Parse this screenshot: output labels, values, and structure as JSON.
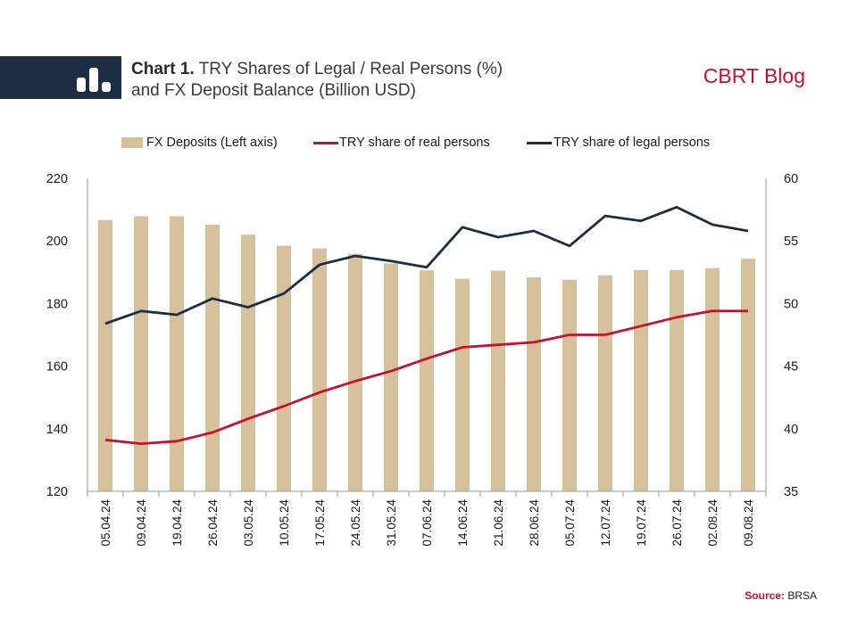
{
  "header": {
    "title_prefix": "Chart 1.",
    "title_line1": "TRY Shares of Legal / Real Persons (%)",
    "title_line2": "and FX Deposit Balance (Billion USD)",
    "brand": "CBRT Blog"
  },
  "source": {
    "label": "Source:",
    "value": "BRSA"
  },
  "colors": {
    "bar": "#d7c09c",
    "real": "#c8102e",
    "legal": "#1c2e44",
    "header_bar": "#1c2e44"
  },
  "chart_data": {
    "type": "bar",
    "categories": [
      "05.04.24",
      "09.04.24",
      "19.04.24",
      "26.04.24",
      "03.05.24",
      "10.05.24",
      "17.05.24",
      "24.05.24",
      "31.05.24",
      "07.06.24",
      "14.06.24",
      "21.06.24",
      "28.06.24",
      "05.07.24",
      "12.07.24",
      "19.07.24",
      "26.07.24",
      "02.08.24",
      "09.08.24"
    ],
    "series": [
      {
        "name": "FX Deposits (Left axis)",
        "type": "bar",
        "axis": "left",
        "values": [
          206.7,
          207.9,
          207.9,
          205.2,
          202.0,
          198.5,
          197.6,
          195.9,
          192.8,
          190.6,
          187.9,
          190.5,
          188.4,
          187.6,
          189.0,
          190.7,
          190.7,
          191.3,
          194.3
        ]
      },
      {
        "name": "TRY share of real persons",
        "type": "line",
        "axis": "right",
        "values": [
          39.1,
          38.8,
          39.0,
          39.7,
          40.8,
          41.8,
          42.9,
          43.8,
          44.6,
          45.6,
          46.5,
          46.7,
          46.9,
          47.5,
          47.5,
          48.2,
          48.9,
          49.4,
          49.4
        ]
      },
      {
        "name": "TRY share of legal persons",
        "type": "line",
        "axis": "right",
        "values": [
          48.4,
          49.4,
          49.1,
          50.4,
          49.7,
          50.8,
          53.1,
          53.8,
          53.4,
          52.9,
          56.1,
          55.3,
          55.8,
          54.6,
          57.0,
          56.6,
          57.7,
          56.3,
          55.8
        ]
      }
    ],
    "y_left": {
      "ticks": [
        120,
        140,
        160,
        180,
        200,
        220
      ],
      "ylim": [
        120,
        220
      ]
    },
    "y_right": {
      "ticks": [
        35,
        40,
        45,
        50,
        55,
        60
      ],
      "ylim": [
        35,
        60
      ]
    },
    "grid": false,
    "legend_position": "top"
  }
}
